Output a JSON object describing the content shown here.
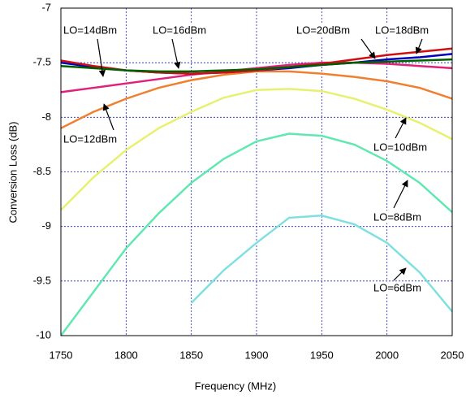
{
  "chart_data": {
    "type": "line",
    "xlabel": "Frequency (MHz)",
    "ylabel": "Conversion Loss (dB)",
    "x": [
      1750,
      1775,
      1800,
      1825,
      1850,
      1875,
      1900,
      1925,
      1950,
      1975,
      2000,
      2025,
      2050
    ],
    "xlim": [
      1750,
      2050
    ],
    "xticks": [
      1750,
      1800,
      1850,
      1900,
      1950,
      2000,
      2050
    ],
    "ylim": [
      -10,
      -7
    ],
    "yticks": [
      -10,
      -9.5,
      -9,
      -8.5,
      -8,
      -7.5,
      -7
    ],
    "grid": true,
    "series": [
      {
        "name": "LO=6dBm",
        "color": "#80e0e0",
        "values": [
          null,
          null,
          null,
          null,
          -9.7,
          -9.4,
          -9.15,
          -8.92,
          -8.9,
          -8.98,
          -9.15,
          -9.42,
          -9.78
        ]
      },
      {
        "name": "LO=8dBm",
        "color": "#60e8b0",
        "values": [
          -10,
          -9.6,
          -9.2,
          -8.88,
          -8.6,
          -8.38,
          -8.22,
          -8.15,
          -8.17,
          -8.25,
          -8.4,
          -8.6,
          -8.87
        ]
      },
      {
        "name": "LO=10dBm",
        "color": "#e8f070",
        "values": [
          -8.85,
          -8.55,
          -8.3,
          -8.1,
          -7.95,
          -7.82,
          -7.75,
          -7.74,
          -7.76,
          -7.83,
          -7.93,
          -8.05,
          -8.2
        ]
      },
      {
        "name": "LO=12dBm",
        "color": "#f08030",
        "values": [
          -8.1,
          -7.95,
          -7.83,
          -7.73,
          -7.66,
          -7.61,
          -7.58,
          -7.58,
          -7.6,
          -7.63,
          -7.67,
          -7.73,
          -7.83
        ]
      },
      {
        "name": "LO=14dBm",
        "color": "#e0207a",
        "values": [
          -7.77,
          -7.73,
          -7.69,
          -7.65,
          -7.61,
          -7.58,
          -7.55,
          -7.52,
          -7.5,
          -7.5,
          -7.51,
          -7.53,
          -7.55
        ]
      },
      {
        "name": "LO=16dBm",
        "color": "#0000c0",
        "values": [
          -7.5,
          -7.54,
          -7.57,
          -7.59,
          -7.6,
          -7.59,
          -7.57,
          -7.55,
          -7.52,
          -7.5,
          -7.47,
          -7.45,
          -7.42
        ]
      },
      {
        "name": "LO=18dBm",
        "color": "#d01010",
        "values": [
          -7.48,
          -7.53,
          -7.57,
          -7.59,
          -7.6,
          -7.59,
          -7.57,
          -7.54,
          -7.51,
          -7.47,
          -7.43,
          -7.4,
          -7.37
        ]
      },
      {
        "name": "LO=20dBm",
        "color": "#006000",
        "values": [
          -7.53,
          -7.55,
          -7.57,
          -7.58,
          -7.58,
          -7.57,
          -7.56,
          -7.54,
          -7.52,
          -7.5,
          -7.49,
          -7.48,
          -7.47
        ]
      }
    ]
  }
}
